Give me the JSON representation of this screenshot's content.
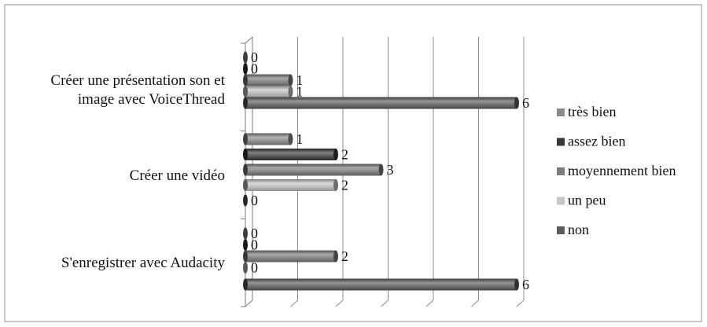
{
  "chart_data": {
    "type": "bar",
    "orientation": "horizontal",
    "style": "3d-cylinder",
    "categories": [
      "Créer une présentation son et image avec VoiceThread",
      "Créer une vidéo",
      "S'enregistrer avec Audacity"
    ],
    "category_lines": [
      [
        "Créer une présentation son et",
        "image avec VoiceThread"
      ],
      [
        "Créer une vidéo"
      ],
      [
        "S'enregistrer avec Audacity"
      ]
    ],
    "series": [
      {
        "name": "très bien",
        "color": "#8a8a8a",
        "values": [
          0,
          1,
          0
        ]
      },
      {
        "name": "assez bien",
        "color": "#383838",
        "values": [
          0,
          2,
          0
        ]
      },
      {
        "name": "moyennement bien",
        "color": "#7c7c7c",
        "values": [
          1,
          3,
          2
        ]
      },
      {
        "name": "un peu",
        "color": "#c6c6c6",
        "values": [
          1,
          2,
          0
        ]
      },
      {
        "name": "non",
        "color": "#5c5c5c",
        "values": [
          6,
          0,
          6
        ]
      }
    ],
    "data_labels": true,
    "xlim": [
      0,
      6
    ],
    "grid": true,
    "legend": "right"
  }
}
